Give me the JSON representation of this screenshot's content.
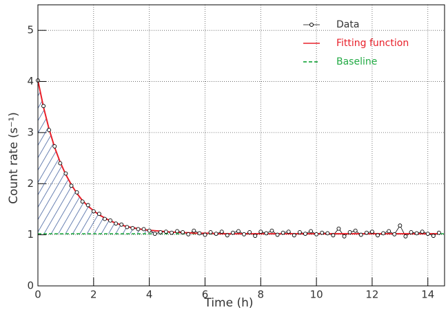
{
  "chart_data": {
    "type": "line",
    "xlabel": "Time (h)",
    "ylabel": "Count rate (s⁻¹)",
    "x": [
      0,
      0.2,
      0.4,
      0.6,
      0.8,
      1.0,
      1.2,
      1.4,
      1.6,
      1.8,
      2.0,
      2.2,
      2.4,
      2.6,
      2.8,
      3.0,
      3.2,
      3.4,
      3.6,
      3.8,
      4.0,
      4.2,
      4.4,
      4.6,
      4.8,
      5.0,
      5.2,
      5.4,
      5.6,
      5.8,
      6.0,
      6.2,
      6.4,
      6.6,
      6.8,
      7.0,
      7.2,
      7.4,
      7.6,
      7.8,
      8.0,
      8.2,
      8.4,
      8.6,
      8.8,
      9.0,
      9.2,
      9.4,
      9.6,
      9.8,
      10.0,
      10.2,
      10.4,
      10.6,
      10.8,
      11.0,
      11.2,
      11.4,
      11.6,
      11.8,
      12.0,
      12.2,
      12.4,
      12.6,
      12.8,
      13.0,
      13.2,
      13.4,
      13.6,
      13.8,
      14.0,
      14.2,
      14.4
    ],
    "series": [
      {
        "name": "Data",
        "color": "#000000",
        "values": [
          4.02,
          3.52,
          3.05,
          2.73,
          2.4,
          2.2,
          1.96,
          1.83,
          1.65,
          1.58,
          1.46,
          1.41,
          1.31,
          1.28,
          1.22,
          1.2,
          1.15,
          1.13,
          1.11,
          1.11,
          1.08,
          1.02,
          1.05,
          1.06,
          1.04,
          1.07,
          1.05,
          1.01,
          1.08,
          1.03,
          1.0,
          1.05,
          1.02,
          1.06,
          0.99,
          1.04,
          1.07,
          1.01,
          1.05,
          0.98,
          1.06,
          1.03,
          1.08,
          1.0,
          1.04,
          1.06,
          0.99,
          1.05,
          1.02,
          1.07,
          1.01,
          1.04,
          1.03,
          0.99,
          1.12,
          0.97,
          1.05,
          1.08,
          1.0,
          1.04,
          1.06,
          0.99,
          1.03,
          1.07,
          1.01,
          1.18,
          0.97,
          1.05,
          1.03,
          1.06,
          1.02,
          0.98,
          1.04
        ]
      },
      {
        "name": "Fitting function",
        "color": "#e8202a",
        "values": [
          4.02,
          3.5,
          3.07,
          2.71,
          2.42,
          2.18,
          1.98,
          1.81,
          1.67,
          1.56,
          1.47,
          1.39,
          1.33,
          1.27,
          1.23,
          1.19,
          1.16,
          1.14,
          1.12,
          1.1,
          1.09,
          1.08,
          1.07,
          1.06,
          1.05,
          1.05,
          1.04,
          1.04,
          1.03,
          1.03,
          1.03,
          1.03,
          1.02,
          1.02,
          1.02,
          1.02,
          1.02,
          1.02,
          1.02,
          1.02,
          1.02,
          1.02,
          1.02,
          1.02,
          1.02,
          1.02,
          1.02,
          1.02,
          1.02,
          1.02,
          1.02,
          1.02,
          1.02,
          1.02,
          1.02,
          1.02,
          1.02,
          1.02,
          1.02,
          1.02,
          1.02,
          1.02,
          1.02,
          1.02,
          1.02,
          1.02,
          1.02,
          1.02,
          1.02,
          1.02,
          1.02,
          1.02,
          1.02
        ]
      },
      {
        "name": "Baseline",
        "color": "#22aa44",
        "x": [
          0,
          14.6
        ],
        "values": [
          1.02,
          1.02
        ]
      }
    ],
    "xlim": [
      0,
      14.6
    ],
    "xticks": [
      0,
      2,
      4,
      6,
      8,
      10,
      12,
      14
    ],
    "ylim": [
      0,
      5.5
    ],
    "yticks": [
      0,
      1,
      2,
      3,
      4,
      5
    ],
    "grid": true,
    "legend": "top-right"
  }
}
